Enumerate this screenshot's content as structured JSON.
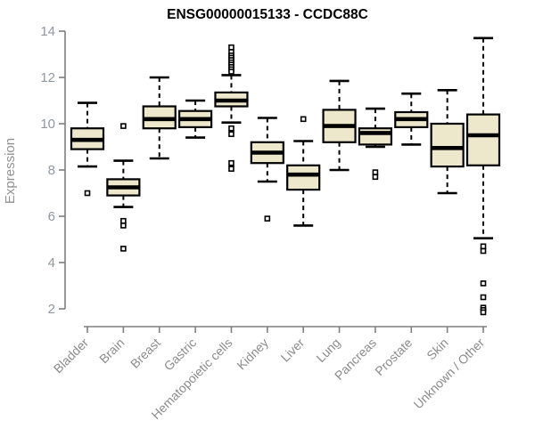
{
  "chart_data": {
    "type": "boxplot",
    "title": "ENSG00000015133 - CCDC88C",
    "ylabel": "Expression",
    "xlabel": "",
    "ylim": [
      1.6,
      14.2
    ],
    "y_ticks": [
      2,
      4,
      6,
      8,
      10,
      12,
      14
    ],
    "grid": false,
    "legend": "none",
    "box_fill": "#EDE7CB",
    "box_stroke": "#000000",
    "axis_line_color": "#7f7f7f",
    "axis_text_color": "#8b8b8b",
    "categories": [
      "Bladder",
      "Brain",
      "Breast",
      "Gastric",
      "Hematopoietic cells",
      "Kidney",
      "Liver",
      "Lung",
      "Pancreas",
      "Prostate",
      "Skin",
      "Unknown / Other"
    ],
    "series": [
      {
        "whisker_low": 8.15,
        "q1": 8.9,
        "median": 9.3,
        "q3": 9.8,
        "whisker_high": 10.9,
        "outliers": [
          7.0
        ]
      },
      {
        "whisker_low": 6.4,
        "q1": 6.9,
        "median": 7.25,
        "q3": 7.6,
        "whisker_high": 8.4,
        "outliers": [
          9.9,
          5.8,
          5.6,
          4.6
        ]
      },
      {
        "whisker_low": 8.5,
        "q1": 9.8,
        "median": 10.2,
        "q3": 10.75,
        "whisker_high": 12.0,
        "outliers": []
      },
      {
        "whisker_low": 9.4,
        "q1": 9.85,
        "median": 10.2,
        "q3": 10.55,
        "whisker_high": 11.0,
        "outliers": []
      },
      {
        "whisker_low": 10.05,
        "q1": 10.75,
        "median": 11.0,
        "q3": 11.35,
        "whisker_high": 12.1,
        "outliers": [
          13.3,
          13.1,
          12.95,
          12.85,
          12.75,
          12.65,
          12.55,
          12.45,
          12.35,
          12.25,
          9.8,
          9.55,
          8.3,
          8.05
        ]
      },
      {
        "whisker_low": 7.5,
        "q1": 8.3,
        "median": 8.75,
        "q3": 9.2,
        "whisker_high": 10.25,
        "outliers": [
          5.9
        ]
      },
      {
        "whisker_low": 5.6,
        "q1": 7.15,
        "median": 7.8,
        "q3": 8.2,
        "whisker_high": 9.25,
        "outliers": [
          10.2
        ]
      },
      {
        "whisker_low": 8.0,
        "q1": 9.2,
        "median": 9.9,
        "q3": 10.6,
        "whisker_high": 11.85,
        "outliers": []
      },
      {
        "whisker_low": 9.0,
        "q1": 9.1,
        "median": 9.6,
        "q3": 9.8,
        "whisker_high": 10.65,
        "outliers": [
          7.9,
          7.7
        ]
      },
      {
        "whisker_low": 9.1,
        "q1": 9.85,
        "median": 10.2,
        "q3": 10.5,
        "whisker_high": 11.3,
        "outliers": []
      },
      {
        "whisker_low": 7.0,
        "q1": 8.15,
        "median": 8.95,
        "q3": 10.0,
        "whisker_high": 11.45,
        "outliers": []
      },
      {
        "whisker_low": 5.05,
        "q1": 8.2,
        "median": 9.5,
        "q3": 10.4,
        "whisker_high": 13.7,
        "outliers": [
          4.7,
          4.5,
          3.1,
          2.5,
          2.05,
          1.95,
          1.85
        ]
      }
    ]
  }
}
